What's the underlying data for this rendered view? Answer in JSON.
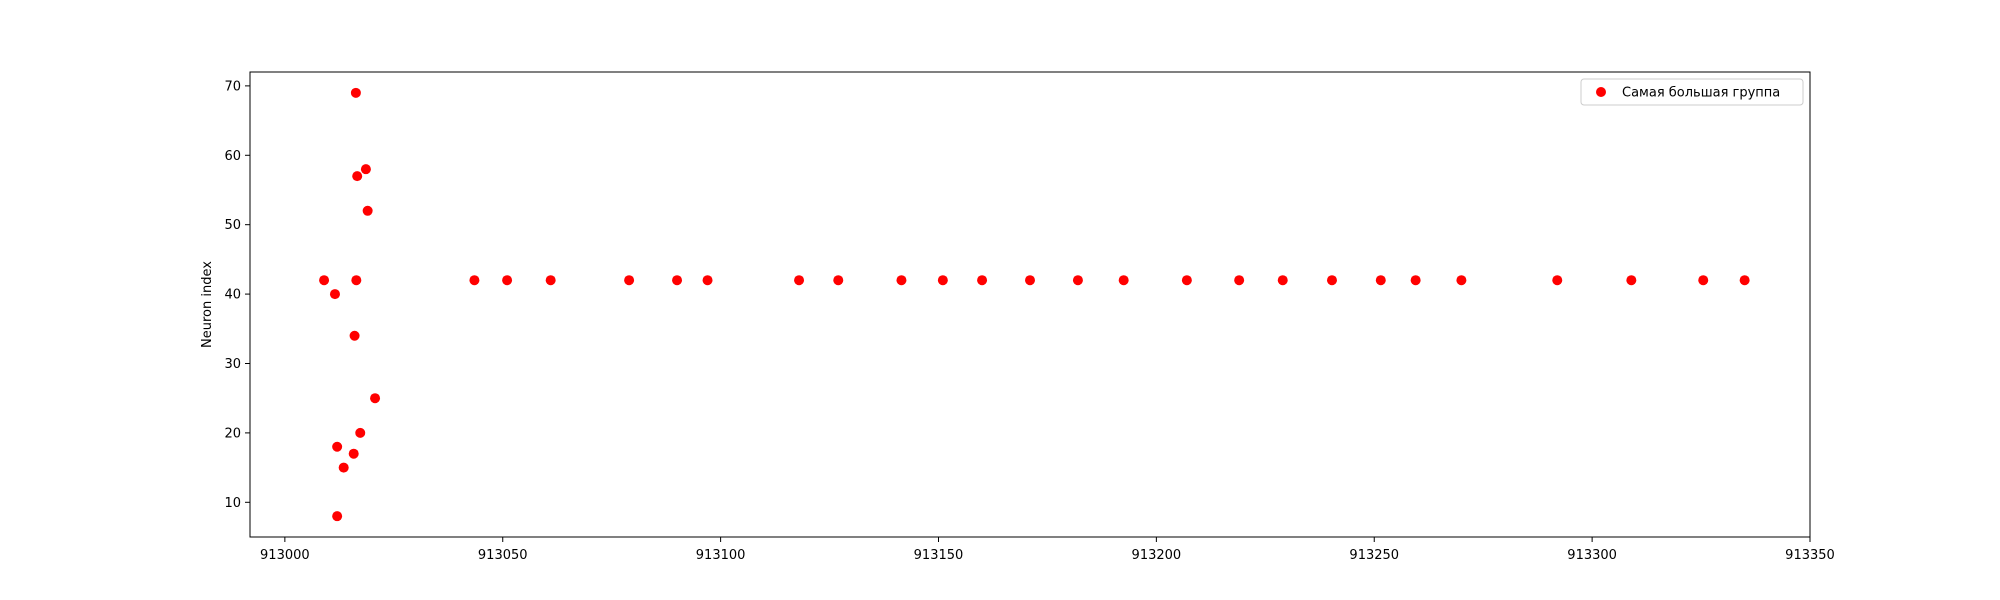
{
  "chart_data": {
    "type": "scatter",
    "title": "",
    "xlabel": "",
    "ylabel": "Neuron index",
    "xlim": [
      912992,
      913350
    ],
    "ylim": [
      5,
      72
    ],
    "x_ticks": [
      913000,
      913050,
      913100,
      913150,
      913200,
      913250,
      913300,
      913350
    ],
    "y_ticks": [
      10,
      20,
      30,
      40,
      50,
      60,
      70
    ],
    "grid": false,
    "legend_position": "top-right",
    "color": "#ff0000",
    "series": [
      {
        "name": "Самая большая группа",
        "points": [
          {
            "x": 913009,
            "y": 42
          },
          {
            "x": 913011.5,
            "y": 40
          },
          {
            "x": 913012,
            "y": 18
          },
          {
            "x": 913012,
            "y": 8
          },
          {
            "x": 913013.5,
            "y": 15
          },
          {
            "x": 913015.8,
            "y": 17
          },
          {
            "x": 913016,
            "y": 34
          },
          {
            "x": 913016.3,
            "y": 69
          },
          {
            "x": 913016.4,
            "y": 42
          },
          {
            "x": 913016.6,
            "y": 57
          },
          {
            "x": 913017.3,
            "y": 20
          },
          {
            "x": 913018.6,
            "y": 58
          },
          {
            "x": 913019,
            "y": 52
          },
          {
            "x": 913020.7,
            "y": 25
          },
          {
            "x": 913043.5,
            "y": 42
          },
          {
            "x": 913051,
            "y": 42
          },
          {
            "x": 913061,
            "y": 42
          },
          {
            "x": 913079,
            "y": 42
          },
          {
            "x": 913090,
            "y": 42
          },
          {
            "x": 913097,
            "y": 42
          },
          {
            "x": 913118,
            "y": 42
          },
          {
            "x": 913127,
            "y": 42
          },
          {
            "x": 913141.5,
            "y": 42
          },
          {
            "x": 913151,
            "y": 42
          },
          {
            "x": 913160,
            "y": 42
          },
          {
            "x": 913171,
            "y": 42
          },
          {
            "x": 913182,
            "y": 42
          },
          {
            "x": 913192.5,
            "y": 42
          },
          {
            "x": 913207,
            "y": 42
          },
          {
            "x": 913219,
            "y": 42
          },
          {
            "x": 913229,
            "y": 42
          },
          {
            "x": 913240.3,
            "y": 42
          },
          {
            "x": 913251.5,
            "y": 42
          },
          {
            "x": 913259.5,
            "y": 42
          },
          {
            "x": 913270,
            "y": 42
          },
          {
            "x": 913292,
            "y": 42
          },
          {
            "x": 913309,
            "y": 42
          },
          {
            "x": 913325.5,
            "y": 42
          },
          {
            "x": 913335,
            "y": 42
          }
        ]
      }
    ]
  }
}
